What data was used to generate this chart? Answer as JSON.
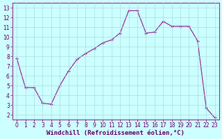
{
  "xlabel": "Windchill (Refroidissement éolien,°C)",
  "x": [
    0,
    1,
    2,
    3,
    4,
    5,
    6,
    7,
    8,
    9,
    10,
    11,
    12,
    13,
    14,
    15,
    16,
    17,
    18,
    19,
    20,
    21,
    22,
    23
  ],
  "y": [
    7.8,
    4.8,
    4.8,
    3.2,
    3.1,
    5.0,
    6.5,
    7.7,
    8.3,
    8.8,
    9.4,
    9.7,
    10.4,
    12.7,
    12.7,
    10.4,
    10.5,
    11.6,
    11.1,
    11.1,
    11.1,
    9.6,
    2.7,
    1.7
  ],
  "line_color": "#993399",
  "marker": "+",
  "bg_color": "#ccffff",
  "grid_color": "#aadddd",
  "ylim_min": 1.5,
  "ylim_max": 13.5,
  "xlim_min": -0.5,
  "xlim_max": 23.5,
  "yticks": [
    2,
    3,
    4,
    5,
    6,
    7,
    8,
    9,
    10,
    11,
    12,
    13
  ],
  "xticks": [
    0,
    1,
    2,
    3,
    4,
    5,
    6,
    7,
    8,
    9,
    10,
    11,
    12,
    13,
    14,
    15,
    16,
    17,
    18,
    19,
    20,
    21,
    22,
    23
  ],
  "tick_label_fontsize": 5.5,
  "xlabel_fontsize": 6.5,
  "axis_label_color": "#660066",
  "spine_color": "#993399"
}
